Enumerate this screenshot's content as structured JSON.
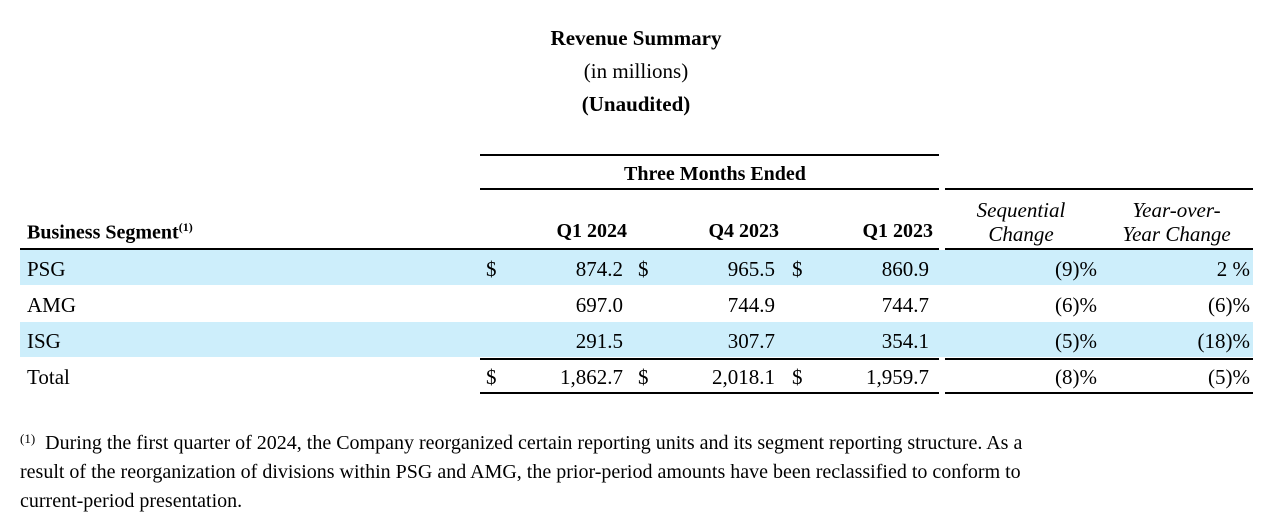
{
  "header": {
    "title": "Revenue Summary",
    "subtitle": "(in millions)",
    "audit_note": "(Unaudited)"
  },
  "table": {
    "group_header": "Three Months Ended",
    "segment_header": "Business Segment",
    "segment_header_note": "(1)",
    "columns": [
      "Q1 2024",
      "Q4 2023",
      "Q1 2023"
    ],
    "change_columns": [
      {
        "line1": "Sequential",
        "line2": "Change"
      },
      {
        "line1": "Year-over-",
        "line2": "Year Change"
      }
    ],
    "currency_symbol": "$",
    "rows": [
      {
        "segment": "PSG",
        "values": [
          "874.2",
          "965.5",
          "860.9"
        ],
        "sequential": "(9)%",
        "yoy": "2 %",
        "show_currency": true,
        "highlight": true
      },
      {
        "segment": "AMG",
        "values": [
          "697.0",
          "744.9",
          "744.7"
        ],
        "sequential": "(6)%",
        "yoy": "(6)%",
        "show_currency": false,
        "highlight": false
      },
      {
        "segment": "ISG",
        "values": [
          "291.5",
          "307.7",
          "354.1"
        ],
        "sequential": "(5)%",
        "yoy": "(18)%",
        "show_currency": false,
        "highlight": true
      },
      {
        "segment": "Total",
        "values": [
          "1,862.7",
          "2,018.1",
          "1,959.7"
        ],
        "sequential": "(8)%",
        "yoy": "(5)%",
        "show_currency": true,
        "highlight": false
      }
    ]
  },
  "footnote": {
    "marker": "(1)",
    "line1": "During the first quarter of 2024, the Company reorganized certain reporting units and its segment reporting structure. As a",
    "line2": "result of the reorganization of divisions within PSG and AMG, the prior-period amounts have been reclassified to conform to",
    "line3": "current-period presentation."
  }
}
